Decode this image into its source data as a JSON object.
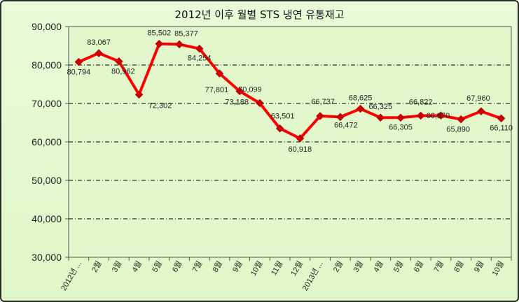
{
  "chart_data": {
    "type": "line",
    "title": "2012년 이후 월별 STS 냉연 유통재고",
    "xlabel": "",
    "ylabel": "",
    "ylim": [
      30000,
      90000
    ],
    "yticks": [
      "30,000",
      "40,000",
      "50,000",
      "60,000",
      "70,000",
      "80,000",
      "90,000"
    ],
    "grid": true,
    "legend": "none",
    "categories": [
      "2012년 ...",
      "2월",
      "3월",
      "4월",
      "5월",
      "6월",
      "7월",
      "8월",
      "9월",
      "10월",
      "11월",
      "12월",
      "2013년 ...",
      "2월",
      "3월",
      "4월",
      "5월",
      "6월",
      "7월",
      "8월",
      "9월",
      "10월"
    ],
    "values": [
      80794,
      83067,
      80962,
      72302,
      85502,
      85377,
      84254,
      77801,
      73188,
      70099,
      63501,
      60918,
      66737,
      66472,
      68625,
      66325,
      66305,
      66822,
      66870,
      65890,
      67960,
      66110
    ],
    "value_labels": [
      "80,794",
      "83,067",
      "80,962",
      "72,302",
      "85,502",
      "85,377",
      "84,254",
      "77,801",
      "73,188",
      "70,099",
      "63,501",
      "60,918",
      "66,737",
      "66,472",
      "68,625",
      "66,325",
      "66,305",
      "66,822",
      "66,870",
      "65,890",
      "67,960",
      "66,110"
    ],
    "colors": {
      "line": "#ff0000",
      "marker": "#cc0000",
      "background": "#e2f8cc"
    }
  }
}
